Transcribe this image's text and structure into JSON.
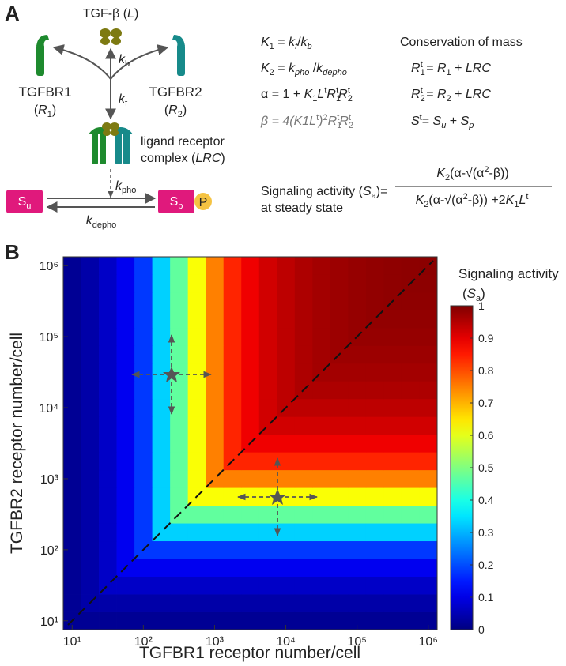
{
  "panel_a": {
    "label": "A",
    "ligand": [
      "TGF-β (",
      "L",
      ")"
    ],
    "kb": [
      "k",
      "b"
    ],
    "kf": [
      "k",
      "f"
    ],
    "r1_name": "TGFBR1",
    "r1_symbol": [
      "(",
      "R",
      "1",
      ")"
    ],
    "r2_name": "TGFBR2",
    "r2_symbol": [
      "(",
      "R",
      "2",
      ")"
    ],
    "complex_line1": "ligand receptor",
    "complex_line2": [
      "complex (",
      "LRC",
      ")"
    ],
    "kpho": [
      "k",
      "pho"
    ],
    "kdepho": [
      "k",
      "depho"
    ],
    "su": [
      "S",
      "u"
    ],
    "sp": [
      "S",
      "p"
    ],
    "phospho": "P",
    "equations": [
      [
        "K",
        "1",
        " = ",
        "k",
        "f",
        "/",
        "k",
        "b"
      ],
      [
        "K",
        "2",
        " = ",
        "k",
        "pho",
        " /",
        "k",
        "depho"
      ],
      [
        "α = 1 + ",
        "K",
        "1",
        "L",
        "t",
        "R",
        "1",
        "t",
        "R",
        "2",
        "t"
      ],
      [
        "β = 4(",
        "K1L",
        "t",
        ")",
        "2",
        "R",
        "1",
        "t",
        "R",
        "2",
        "t"
      ]
    ],
    "conservation_title": "Conservation of mass",
    "conservation": [
      [
        "R",
        "1",
        "t",
        " = ",
        "R",
        "1",
        " + ",
        "LRC"
      ],
      [
        "R",
        "2",
        "t",
        " = ",
        "R",
        "2",
        " + ",
        "LRC"
      ],
      [
        "S",
        "t",
        "= ",
        "S",
        "u",
        " + ",
        "S",
        "p"
      ]
    ],
    "signaling_line1": [
      "Signaling activity (",
      "S",
      "a",
      ")="
    ],
    "signaling_line2": "at steady state",
    "numerator": [
      "K",
      "2",
      "(α-√(α",
      "2",
      "-β))"
    ],
    "denominator": [
      "K",
      "2",
      "(α-√(α",
      "2",
      "-β)) +2",
      "K",
      "1",
      "L",
      "t"
    ]
  },
  "chart_data": {
    "type": "heatmap",
    "panel_label": "B",
    "xlabel": "TGFBR1 receptor number/cell",
    "ylabel": "TGFBR2 receptor number/cell",
    "colorbar_title": [
      "Signaling activity",
      "(",
      "S",
      "a",
      ")"
    ],
    "log_x": true,
    "log_y": true,
    "colormap": "jet",
    "xlim": [
      7.5,
      1333500
    ],
    "ylim": [
      7.5,
      1333500
    ],
    "xticks": [
      {
        "value": 10,
        "label": "10¹"
      },
      {
        "value": 100,
        "label": "10²"
      },
      {
        "value": 1000,
        "label": "10³"
      },
      {
        "value": 10000,
        "label": "10⁴"
      },
      {
        "value": 100000,
        "label": "10⁵"
      },
      {
        "value": 1000000,
        "label": "10⁶"
      }
    ],
    "yticks": [
      {
        "value": 10,
        "label": "10¹"
      },
      {
        "value": 100,
        "label": "10²"
      },
      {
        "value": 1000,
        "label": "10³"
      },
      {
        "value": 10000,
        "label": "10⁴"
      },
      {
        "value": 100000,
        "label": "10⁵"
      },
      {
        "value": 1000000,
        "label": "10⁶"
      }
    ],
    "clim": [
      0,
      1
    ],
    "cticks": [
      0,
      0.1,
      0.2,
      0.3,
      0.4,
      0.5,
      0.6,
      0.7,
      0.8,
      0.9,
      1
    ],
    "x": [
      10,
      17.78,
      31.62,
      56.23,
      100,
      177.8,
      316.2,
      562.3,
      1000,
      1778,
      3162,
      5623,
      10000,
      17783,
      31623,
      56234,
      100000,
      177828,
      316228,
      562341,
      1000000
    ],
    "y": [
      10,
      17.78,
      31.62,
      56.23,
      100,
      177.8,
      316.2,
      562.3,
      1000,
      1778,
      3162,
      5623,
      10000,
      17783,
      31623,
      56234,
      100000,
      177828,
      316228,
      562341,
      1000000
    ],
    "values": [
      [
        0.02,
        0.02,
        0.02,
        0.02,
        0.02,
        0.02,
        0.02,
        0.02,
        0.02,
        0.02,
        0.02,
        0.02,
        0.02,
        0.02,
        0.02,
        0.02,
        0.02,
        0.02,
        0.02,
        0.02,
        0.02
      ],
      [
        0.02,
        0.04,
        0.04,
        0.04,
        0.04,
        0.04,
        0.04,
        0.04,
        0.04,
        0.04,
        0.04,
        0.04,
        0.04,
        0.04,
        0.04,
        0.04,
        0.04,
        0.04,
        0.04,
        0.04,
        0.04
      ],
      [
        0.02,
        0.04,
        0.07,
        0.07,
        0.07,
        0.07,
        0.07,
        0.07,
        0.07,
        0.07,
        0.07,
        0.07,
        0.07,
        0.07,
        0.07,
        0.07,
        0.07,
        0.07,
        0.07,
        0.07,
        0.07
      ],
      [
        0.02,
        0.04,
        0.07,
        0.11,
        0.11,
        0.11,
        0.11,
        0.11,
        0.11,
        0.11,
        0.11,
        0.11,
        0.11,
        0.11,
        0.11,
        0.11,
        0.11,
        0.11,
        0.11,
        0.11,
        0.11
      ],
      [
        0.02,
        0.04,
        0.07,
        0.11,
        0.18,
        0.18,
        0.18,
        0.18,
        0.18,
        0.18,
        0.18,
        0.18,
        0.18,
        0.18,
        0.18,
        0.18,
        0.18,
        0.18,
        0.18,
        0.18,
        0.18
      ],
      [
        0.02,
        0.04,
        0.07,
        0.11,
        0.18,
        0.33,
        0.33,
        0.33,
        0.33,
        0.33,
        0.33,
        0.33,
        0.33,
        0.33,
        0.33,
        0.33,
        0.33,
        0.33,
        0.33,
        0.33,
        0.33
      ],
      [
        0.02,
        0.04,
        0.07,
        0.11,
        0.18,
        0.33,
        0.47,
        0.47,
        0.47,
        0.47,
        0.47,
        0.47,
        0.47,
        0.47,
        0.47,
        0.47,
        0.47,
        0.47,
        0.47,
        0.47,
        0.47
      ],
      [
        0.02,
        0.04,
        0.07,
        0.11,
        0.18,
        0.33,
        0.47,
        0.62,
        0.62,
        0.62,
        0.62,
        0.62,
        0.62,
        0.62,
        0.62,
        0.62,
        0.62,
        0.62,
        0.62,
        0.62,
        0.62
      ],
      [
        0.02,
        0.04,
        0.07,
        0.11,
        0.18,
        0.33,
        0.47,
        0.62,
        0.75,
        0.75,
        0.75,
        0.75,
        0.75,
        0.75,
        0.75,
        0.75,
        0.75,
        0.75,
        0.75,
        0.75,
        0.75
      ],
      [
        0.02,
        0.04,
        0.07,
        0.11,
        0.18,
        0.33,
        0.47,
        0.62,
        0.75,
        0.84,
        0.84,
        0.84,
        0.84,
        0.84,
        0.84,
        0.84,
        0.84,
        0.84,
        0.84,
        0.84,
        0.84
      ],
      [
        0.02,
        0.04,
        0.07,
        0.11,
        0.18,
        0.33,
        0.47,
        0.62,
        0.75,
        0.84,
        0.89,
        0.89,
        0.89,
        0.89,
        0.89,
        0.89,
        0.89,
        0.89,
        0.89,
        0.89,
        0.89
      ],
      [
        0.02,
        0.04,
        0.07,
        0.11,
        0.18,
        0.33,
        0.47,
        0.62,
        0.75,
        0.84,
        0.89,
        0.92,
        0.92,
        0.92,
        0.92,
        0.92,
        0.92,
        0.92,
        0.92,
        0.92,
        0.92
      ],
      [
        0.02,
        0.04,
        0.07,
        0.11,
        0.18,
        0.33,
        0.47,
        0.62,
        0.75,
        0.84,
        0.89,
        0.92,
        0.94,
        0.94,
        0.94,
        0.94,
        0.94,
        0.94,
        0.94,
        0.94,
        0.94
      ],
      [
        0.02,
        0.04,
        0.07,
        0.11,
        0.18,
        0.33,
        0.47,
        0.62,
        0.75,
        0.84,
        0.89,
        0.92,
        0.94,
        0.955,
        0.955,
        0.955,
        0.955,
        0.955,
        0.955,
        0.955,
        0.955
      ],
      [
        0.02,
        0.04,
        0.07,
        0.11,
        0.18,
        0.33,
        0.47,
        0.62,
        0.75,
        0.84,
        0.89,
        0.92,
        0.94,
        0.955,
        0.965,
        0.965,
        0.965,
        0.965,
        0.965,
        0.965,
        0.965
      ],
      [
        0.02,
        0.04,
        0.07,
        0.11,
        0.18,
        0.33,
        0.47,
        0.62,
        0.75,
        0.84,
        0.89,
        0.92,
        0.94,
        0.955,
        0.965,
        0.972,
        0.972,
        0.972,
        0.972,
        0.972,
        0.972
      ],
      [
        0.02,
        0.04,
        0.07,
        0.11,
        0.18,
        0.33,
        0.47,
        0.62,
        0.75,
        0.84,
        0.89,
        0.92,
        0.94,
        0.955,
        0.965,
        0.972,
        0.978,
        0.978,
        0.978,
        0.978,
        0.978
      ],
      [
        0.02,
        0.04,
        0.07,
        0.11,
        0.18,
        0.33,
        0.47,
        0.62,
        0.75,
        0.84,
        0.89,
        0.92,
        0.94,
        0.955,
        0.965,
        0.972,
        0.978,
        0.982,
        0.982,
        0.982,
        0.982
      ],
      [
        0.02,
        0.04,
        0.07,
        0.11,
        0.18,
        0.33,
        0.47,
        0.62,
        0.75,
        0.84,
        0.89,
        0.92,
        0.94,
        0.955,
        0.965,
        0.972,
        0.978,
        0.982,
        0.985,
        0.985,
        0.985
      ],
      [
        0.02,
        0.04,
        0.07,
        0.11,
        0.18,
        0.33,
        0.47,
        0.62,
        0.75,
        0.84,
        0.89,
        0.92,
        0.94,
        0.955,
        0.965,
        0.972,
        0.978,
        0.982,
        0.985,
        0.987,
        0.987
      ],
      [
        0.02,
        0.04,
        0.07,
        0.11,
        0.18,
        0.33,
        0.47,
        0.62,
        0.75,
        0.84,
        0.89,
        0.92,
        0.94,
        0.955,
        0.965,
        0.972,
        0.978,
        0.982,
        0.985,
        0.987,
        0.989
      ]
    ]
  }
}
